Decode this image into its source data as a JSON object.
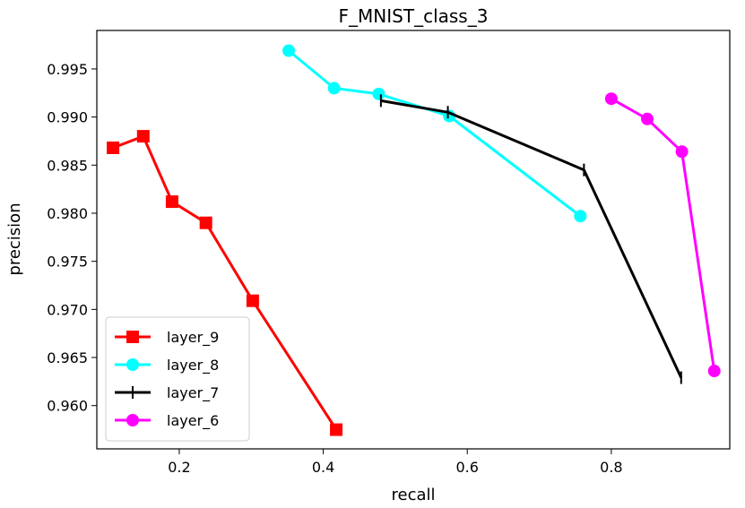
{
  "chart_data": {
    "type": "line",
    "title": "F_MNIST_class_3",
    "xlabel": "recall",
    "ylabel": "precision",
    "xlim": [
      0.0855,
      0.9645
    ],
    "ylim": [
      0.9555,
      0.999
    ],
    "x_ticks": [
      0.2,
      0.4,
      0.6,
      0.8
    ],
    "x_tick_labels": [
      "0.2",
      "0.4",
      "0.6",
      "0.8"
    ],
    "y_ticks": [
      0.96,
      0.965,
      0.97,
      0.975,
      0.98,
      0.985,
      0.99,
      0.995
    ],
    "y_tick_labels": [
      "0.960",
      "0.965",
      "0.970",
      "0.975",
      "0.980",
      "0.985",
      "0.990",
      "0.995"
    ],
    "grid": false,
    "legend_position": "lower-left",
    "series": [
      {
        "name": "layer_9",
        "color": "#ff0000",
        "marker": "square",
        "x": [
          0.108,
          0.15,
          0.19,
          0.237,
          0.302,
          0.418
        ],
        "y": [
          0.9868,
          0.988,
          0.9812,
          0.979,
          0.9709,
          0.9575
        ]
      },
      {
        "name": "layer_8",
        "color": "#00ffff",
        "marker": "circle",
        "x": [
          0.352,
          0.415,
          0.477,
          0.575,
          0.757
        ],
        "y": [
          0.9969,
          0.993,
          0.9924,
          0.9901,
          0.9797
        ]
      },
      {
        "name": "layer_7",
        "color": "#000000",
        "marker": "vline",
        "x": [
          0.48,
          0.573,
          0.762,
          0.897
        ],
        "y": [
          0.9917,
          0.9905,
          0.9845,
          0.9629
        ]
      },
      {
        "name": "layer_6",
        "color": "#ff00ff",
        "marker": "circle",
        "x": [
          0.8,
          0.85,
          0.898,
          0.943
        ],
        "y": [
          0.9919,
          0.9898,
          0.9864,
          0.9636
        ]
      }
    ]
  }
}
